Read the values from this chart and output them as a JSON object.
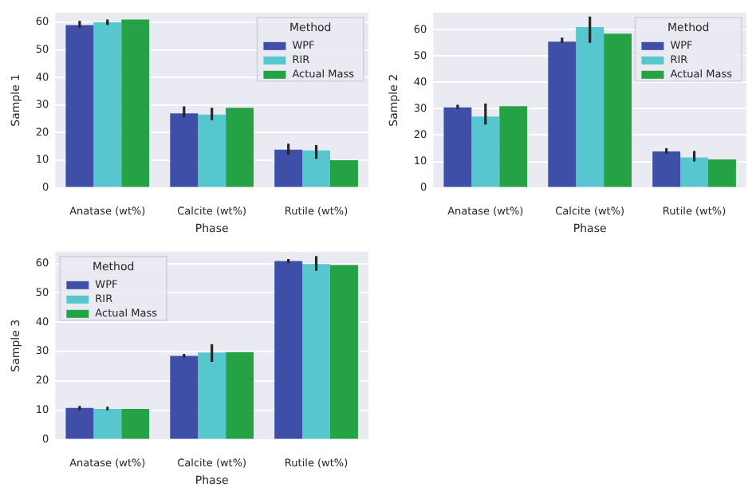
{
  "chart_data": [
    {
      "type": "bar",
      "xlabel": "Phase",
      "ylabel": "Sample 1",
      "categories": [
        "Anatase (wt%)",
        "Calcite (wt%)",
        "Rutile (wt%)"
      ],
      "ylim": [
        0,
        63.5
      ],
      "yticks": [
        0,
        10,
        20,
        30,
        40,
        50,
        60
      ],
      "grid": "y",
      "legend": "top right",
      "legend_title": "Method",
      "series": [
        {
          "name": "WPF",
          "color": "#3f4fa8",
          "values": [
            59,
            27,
            13.8
          ],
          "errors": [
            [
              58,
              60.5
            ],
            [
              25.5,
              29.5
            ],
            [
              12,
              16
            ]
          ]
        },
        {
          "name": "RIR",
          "color": "#56c6cf",
          "values": [
            60,
            26.5,
            13.5
          ],
          "errors": [
            [
              59,
              61
            ],
            [
              24.5,
              29
            ],
            [
              10.5,
              15.5
            ]
          ]
        },
        {
          "name": "Actual Mass",
          "color": "#24a245",
          "values": [
            61,
            29,
            10
          ]
        }
      ]
    },
    {
      "type": "bar",
      "xlabel": "Phase",
      "ylabel": "Sample 2",
      "categories": [
        "Anatase (wt%)",
        "Calcite (wt%)",
        "Rutile (wt%)"
      ],
      "ylim": [
        0,
        66.5
      ],
      "yticks": [
        0,
        10,
        20,
        30,
        40,
        50,
        60
      ],
      "grid": "y",
      "legend": "top right",
      "legend_title": "Method",
      "series": [
        {
          "name": "WPF",
          "color": "#3f4fa8",
          "values": [
            30.5,
            55.5,
            13.8
          ],
          "errors": [
            [
              30,
              31.5
            ],
            [
              55,
              57
            ],
            [
              13,
              15
            ]
          ]
        },
        {
          "name": "RIR",
          "color": "#56c6cf",
          "values": [
            27,
            61,
            11.5
          ],
          "errors": [
            [
              24,
              32
            ],
            [
              55,
              65
            ],
            [
              10,
              14
            ]
          ]
        },
        {
          "name": "Actual Mass",
          "color": "#24a245",
          "values": [
            31,
            58.5,
            10.8
          ]
        }
      ]
    },
    {
      "type": "bar",
      "xlabel": "Phase",
      "ylabel": "Sample 3",
      "categories": [
        "Anatase (wt%)",
        "Calcite (wt%)",
        "Rutile (wt%)"
      ],
      "ylim": [
        0,
        64
      ],
      "yticks": [
        0,
        10,
        20,
        30,
        40,
        50,
        60
      ],
      "grid": "y",
      "legend": "top left",
      "legend_title": "Method",
      "series": [
        {
          "name": "WPF",
          "color": "#3f4fa8",
          "values": [
            10.8,
            28.5,
            60.8
          ],
          "errors": [
            [
              10,
              11.5
            ],
            [
              28,
              29.2
            ],
            [
              60.2,
              61.5
            ]
          ]
        },
        {
          "name": "RIR",
          "color": "#56c6cf",
          "values": [
            10.5,
            29.7,
            59.8
          ],
          "errors": [
            [
              10,
              11.2
            ],
            [
              26.5,
              32.5
            ],
            [
              57.5,
              62.5
            ]
          ]
        },
        {
          "name": "Actual Mass",
          "color": "#24a245",
          "values": [
            10.5,
            29.8,
            59.5
          ]
        }
      ]
    }
  ]
}
